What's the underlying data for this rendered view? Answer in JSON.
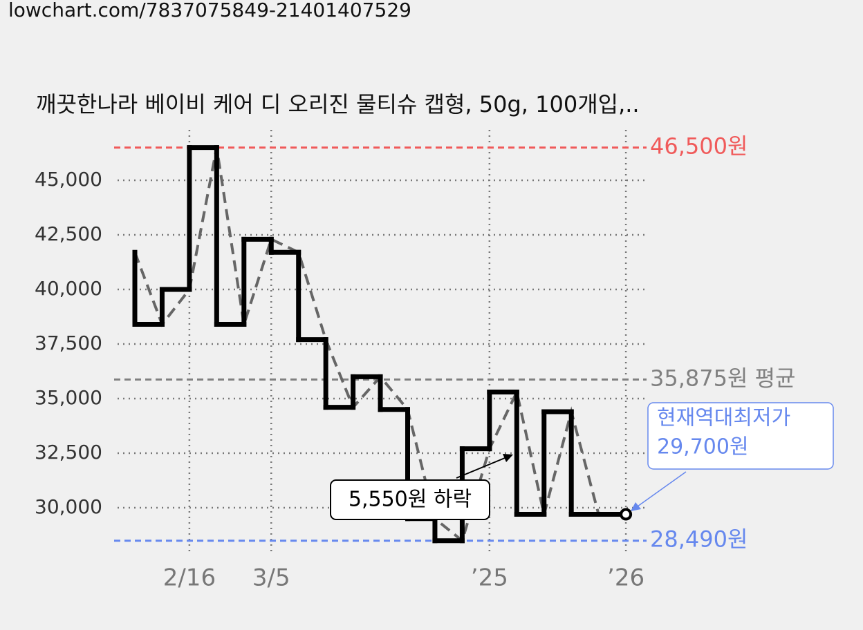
{
  "chart_data": {
    "type": "step",
    "source": "lowchart.com/7837075849-21401407529",
    "title": "깨끗한나라 베이비 케어 디 오리진 물티슈 캡형, 50g, 100개입,..",
    "categories": [
      null,
      null,
      "2/16",
      null,
      null,
      "3/5",
      null,
      null,
      null,
      null,
      null,
      null,
      null,
      "’25",
      null,
      null,
      null,
      null,
      "’26"
    ],
    "series": [
      {
        "color": "#000000",
        "trend_color": "#666666",
        "values": [
          41700,
          38400,
          40000,
          46500,
          38400,
          42300,
          41700,
          37700,
          34600,
          36000,
          34500,
          29500,
          28490,
          32700,
          35300,
          29700,
          34400,
          29700,
          29700
        ]
      }
    ],
    "ylim": [
      28000,
      47000
    ],
    "yticks": [
      {
        "value": 30000,
        "label": "30,000"
      },
      {
        "value": 32500,
        "label": "32,500"
      },
      {
        "value": 35000,
        "label": "35,000"
      },
      {
        "value": 37500,
        "label": "37,500"
      },
      {
        "value": 40000,
        "label": "40,000"
      },
      {
        "value": 42500,
        "label": "42,500"
      },
      {
        "value": 45000,
        "label": "45,000"
      }
    ],
    "grid": true,
    "reference_lines": [
      {
        "value": 46500,
        "label": "46,500원",
        "color": "#f05a5a"
      },
      {
        "value": 35875,
        "label": "35,875원 평균",
        "color": "#808080"
      },
      {
        "value": 28490,
        "label": "28,490원",
        "color": "#6688ee"
      }
    ],
    "current": {
      "title": "현재역대최저가",
      "value": 29700,
      "label": "29,700원",
      "color": "#6688ee"
    },
    "drop": {
      "label": "5,550원 하락"
    }
  }
}
